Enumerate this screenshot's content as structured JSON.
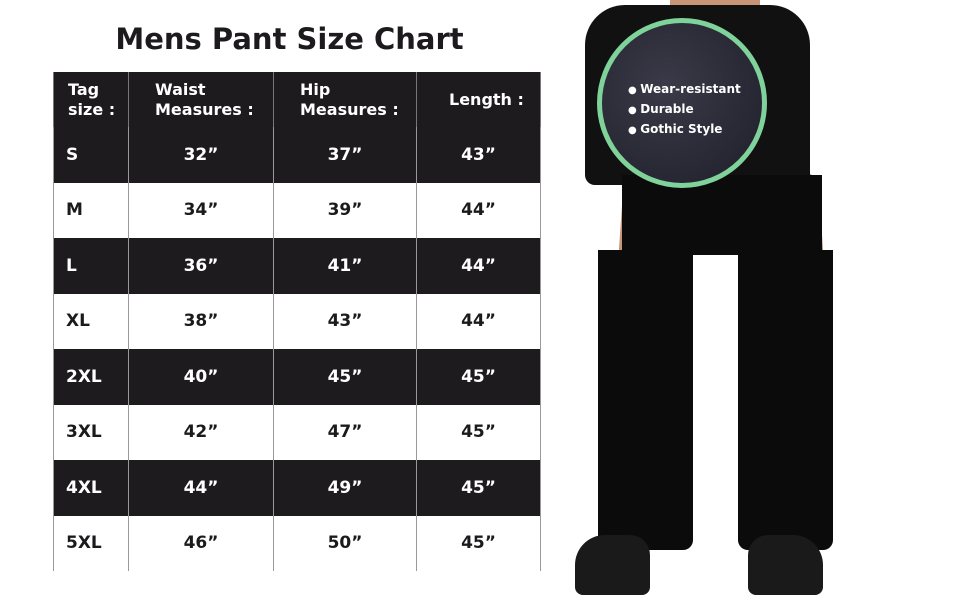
{
  "title": "Mens Pant Size Chart",
  "table": {
    "headers": [
      "Tag size :",
      "Waist Measures :",
      "Hip Measures :",
      "Length :"
    ],
    "rows": [
      [
        "S",
        "32”",
        "37”",
        "43”"
      ],
      [
        "M",
        "34”",
        "39”",
        "44”"
      ],
      [
        "L",
        "36”",
        "41”",
        "44”"
      ],
      [
        "XL",
        "38”",
        "43”",
        "44”"
      ],
      [
        "2XL",
        "40”",
        "45”",
        "45”"
      ],
      [
        "3XL",
        "42”",
        "47”",
        "45”"
      ],
      [
        "4XL",
        "44”",
        "49”",
        "45”"
      ],
      [
        "5XL",
        "46”",
        "50”",
        "45”"
      ]
    ]
  },
  "features": [
    "Wear-resistant",
    "Durable",
    "Gothic Style"
  ],
  "colors": {
    "header_bg": "#1e1b1f",
    "badge_ring": "#7fd39a"
  }
}
